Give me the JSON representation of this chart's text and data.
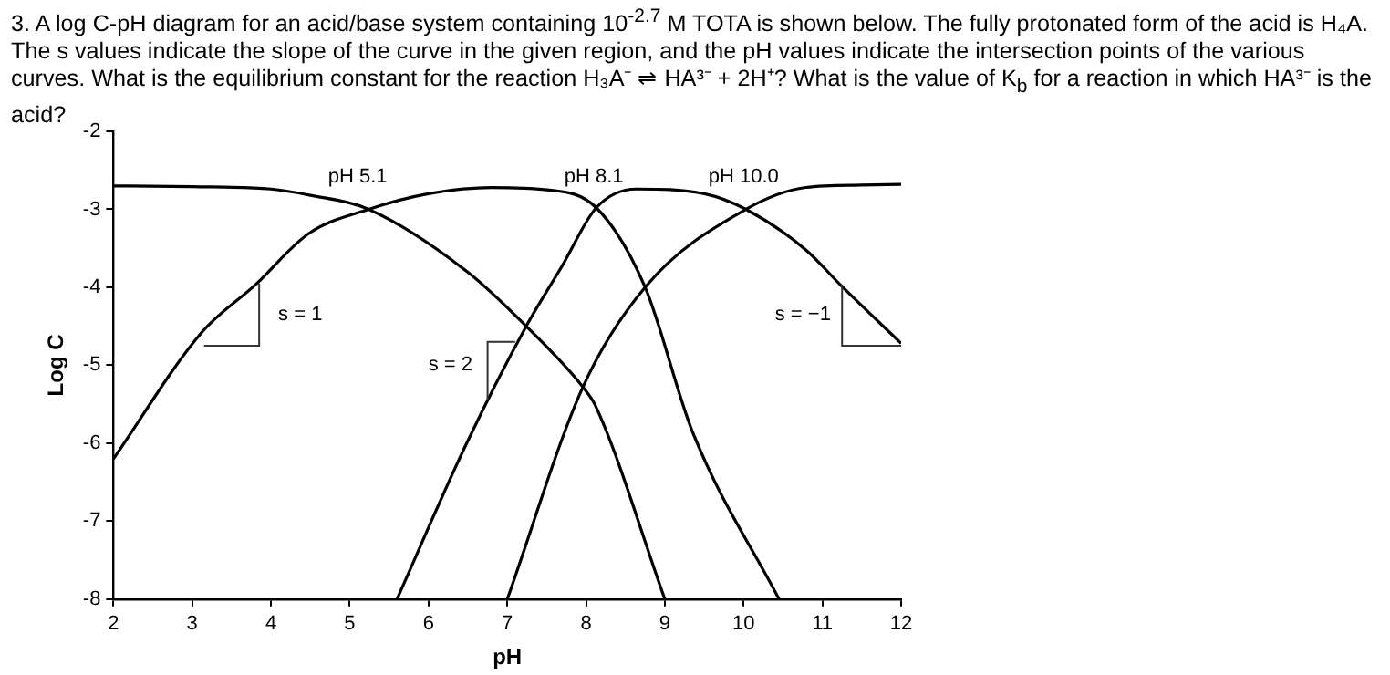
{
  "chart_data": {
    "type": "line",
    "title": "3. A log C-pH diagram for an acid/base system containing 10$^{-2.7}$ M TOTA is shown below. The fully protonated form of the acid is H₄A. The s values indicate the slope of the curve in the given region, and the pH values indicate the intersection points of the various curves. What is the equilibrium constant for the reaction H₃A⁻ ⇌ HA³⁻ + 2H⁺? What is the value of K$_{b}$ for a reaction in which HA³⁻ is the acid?",
    "xlabel": "pH",
    "ylabel": "Log C",
    "xlim": [
      2,
      12
    ],
    "xticks": [
      2,
      3,
      4,
      5,
      6,
      7,
      8,
      9,
      10,
      11,
      12
    ],
    "ylim": [
      -8,
      -2
    ],
    "yticks": [
      -8,
      -7,
      -6,
      -5,
      -4,
      -3,
      -2
    ],
    "grid": false,
    "legend": false,
    "marker": "none",
    "line_style": "solid",
    "series": [
      {
        "color": "#000000",
        "x": [
          2,
          3,
          4,
          4.5,
          5.24,
          6.49,
          7.24,
          7.96,
          8.12,
          9.0
        ],
        "values": [
          -2.7,
          -2.71,
          -2.74,
          -2.82,
          -3.0,
          -3.8,
          -4.5,
          -5.28,
          -5.52,
          -8.0
        ]
      },
      {
        "color": "#000000",
        "x": [
          2,
          3.12,
          3.8,
          4.48,
          5.24,
          6.0,
          6.8,
          7.5,
          8.13,
          8.75,
          9.35,
          10.45
        ],
        "values": [
          -6.2,
          -4.58,
          -3.97,
          -3.31,
          -3.0,
          -2.8,
          -2.72,
          -2.75,
          -2.98,
          -4.0,
          -5.85,
          -8.0
        ]
      },
      {
        "color": "#000000",
        "x": [
          5.6,
          6.48,
          7.24,
          7.7,
          8.13,
          8.64,
          9.5,
          10.03,
          10.79,
          11.23,
          12
        ],
        "values": [
          -8.0,
          -6.01,
          -4.5,
          -3.72,
          -2.98,
          -2.74,
          -2.8,
          -3.0,
          -3.52,
          -3.97,
          -4.72
        ]
      },
      {
        "color": "#000000",
        "x": [
          7.0,
          7.96,
          8.75,
          10.03,
          10.79,
          11.5,
          12
        ],
        "values": [
          -8.0,
          -5.28,
          -4.0,
          -3.0,
          -2.72,
          -2.69,
          -2.68
        ]
      }
    ],
    "annotations": [
      {
        "text": "pH 5.1",
        "x": 5.1,
        "y": -3.0
      },
      {
        "text": "pH 8.1",
        "x": 8.1,
        "y": -3.0
      },
      {
        "text": "pH 10.0",
        "x": 10.0,
        "y": -3.0
      },
      "s = 1",
      "s = 2",
      "s = −1"
    ]
  }
}
